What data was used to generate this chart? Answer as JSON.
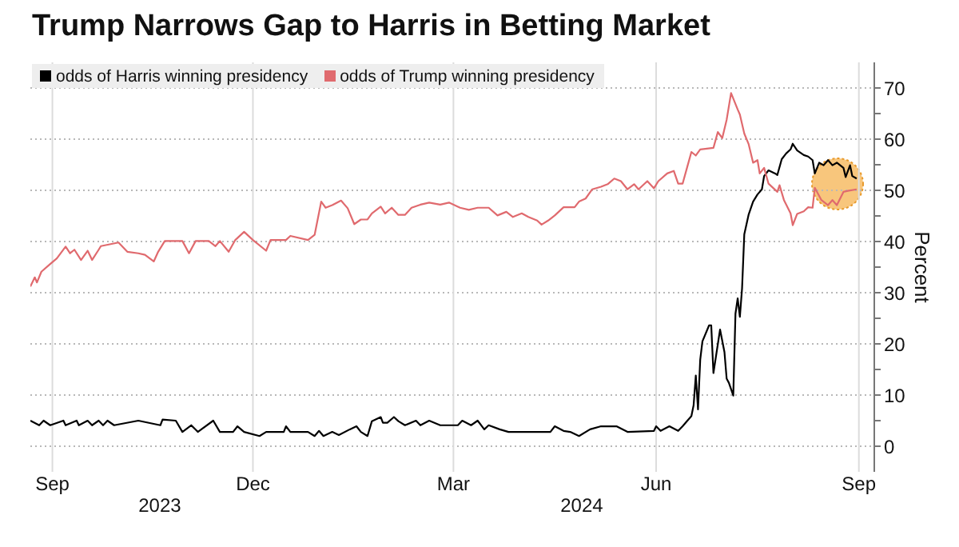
{
  "chart_data": {
    "type": "line",
    "title": "Trump Narrows Gap to Harris in Betting Market",
    "ylabel": "Percent",
    "xlim": [
      "2023-08-22",
      "2024-09-08"
    ],
    "xticks": [
      {
        "value": "2023-09-01",
        "label": "Sep"
      },
      {
        "value": "2023-12-01",
        "label": "Dec"
      },
      {
        "value": "2024-03-01",
        "label": "Mar"
      },
      {
        "value": "2024-06-01",
        "label": "Jun"
      },
      {
        "value": "2024-09-01",
        "label": "Sep"
      }
    ],
    "ylim": [
      -5,
      75
    ],
    "yticks": [
      0,
      {
        "value": 5,
        "label": null
      },
      10,
      {
        "value": 15,
        "label": null
      },
      20,
      {
        "value": 25,
        "label": null
      },
      30,
      {
        "value": 35,
        "label": null
      },
      40,
      {
        "value": 45,
        "label": null
      },
      50,
      {
        "value": 55,
        "label": null
      },
      60,
      {
        "value": 65,
        "label": null
      },
      70
    ],
    "grid": true,
    "legend": "top left",
    "annotations": [
      "2023",
      "2024"
    ],
    "series": [
      {
        "name": "odds of Harris winning presidency",
        "color": "#000000",
        "x": [
          "2023-08-22",
          "2023-08-26",
          "2023-08-28",
          "2023-08-31",
          "2023-09-06",
          "2023-09-07",
          "2023-09-12",
          "2023-09-13",
          "2023-09-17",
          "2023-09-19",
          "2023-09-22",
          "2023-09-24",
          "2023-09-26",
          "2023-09-29",
          "2023-10-10",
          "2023-10-20",
          "2023-10-21",
          "2023-10-27",
          "2023-10-30",
          "2023-11-03",
          "2023-11-06",
          "2023-11-13",
          "2023-11-16",
          "2023-11-22",
          "2023-11-24",
          "2023-11-27",
          "2023-12-04",
          "2023-12-07",
          "2023-12-15",
          "2023-12-16",
          "2023-12-18",
          "2023-12-26",
          "2023-12-29",
          "2023-12-31",
          "2024-01-02",
          "2024-01-06",
          "2024-01-09",
          "2024-01-14",
          "2024-01-17",
          "2024-01-19",
          "2024-01-22",
          "2024-01-24",
          "2024-01-28",
          "2024-01-29",
          "2024-01-31",
          "2024-02-03",
          "2024-02-05",
          "2024-02-08",
          "2024-02-13",
          "2024-02-15",
          "2024-02-19",
          "2024-02-24",
          "2024-03-03",
          "2024-03-05",
          "2024-03-09",
          "2024-03-12",
          "2024-03-15",
          "2024-03-17",
          "2024-03-22",
          "2024-03-26",
          "2024-04-14",
          "2024-04-16",
          "2024-04-20",
          "2024-04-23",
          "2024-04-27",
          "2024-05-02",
          "2024-05-07",
          "2024-05-14",
          "2024-05-19",
          "2024-05-31",
          "2024-06-01",
          "2024-06-03",
          "2024-06-07",
          "2024-06-11",
          "2024-06-13",
          "2024-06-17",
          "2024-06-18",
          "2024-06-19",
          "2024-06-20",
          "2024-06-21",
          "2024-06-22",
          "2024-06-25",
          "2024-06-26",
          "2024-06-27",
          "2024-06-30",
          "2024-07-02",
          "2024-07-03",
          "2024-07-04",
          "2024-07-06",
          "2024-07-07",
          "2024-07-08",
          "2024-07-09",
          "2024-07-10",
          "2024-07-11",
          "2024-07-13",
          "2024-07-15",
          "2024-07-17",
          "2024-07-19",
          "2024-07-20",
          "2024-07-22",
          "2024-07-25",
          "2024-07-26",
          "2024-07-28",
          "2024-07-30",
          "2024-08-01",
          "2024-08-02",
          "2024-08-04",
          "2024-08-07",
          "2024-08-09",
          "2024-08-11",
          "2024-08-12",
          "2024-08-14",
          "2024-08-16",
          "2024-08-18",
          "2024-08-20",
          "2024-08-22",
          "2024-08-25",
          "2024-08-26",
          "2024-08-28",
          "2024-08-29",
          "2024-08-31"
        ],
        "values": [
          5.0,
          4.1,
          5.0,
          4.1,
          5.0,
          4.1,
          5.0,
          4.1,
          5.0,
          4.1,
          5.0,
          4.1,
          5.0,
          4.1,
          5.0,
          4.1,
          5.2,
          5.0,
          2.8,
          4.1,
          2.8,
          5.0,
          2.8,
          2.8,
          3.9,
          2.8,
          2.0,
          2.8,
          2.8,
          3.9,
          2.8,
          2.8,
          2.0,
          3.0,
          2.0,
          2.8,
          2.2,
          3.3,
          3.9,
          2.8,
          2.0,
          4.9,
          5.7,
          4.6,
          4.6,
          5.7,
          4.9,
          4.1,
          5.0,
          4.1,
          5.0,
          4.1,
          4.1,
          5.0,
          4.1,
          5.0,
          3.3,
          4.1,
          3.3,
          2.8,
          2.8,
          3.9,
          3.0,
          2.8,
          2.0,
          3.3,
          3.9,
          3.9,
          2.8,
          3.0,
          3.9,
          3.0,
          3.9,
          3.0,
          3.9,
          5.9,
          8.0,
          13.8,
          7.2,
          16.9,
          20.5,
          23.6,
          23.6,
          14.3,
          22.8,
          18.4,
          13.2,
          12.4,
          9.9,
          25.9,
          28.9,
          25.3,
          30.9,
          41.4,
          45.3,
          47.8,
          49.2,
          50.2,
          52.8,
          53.9,
          53.3,
          53.0,
          56.1,
          57.2,
          58.0,
          59.1,
          57.8,
          56.9,
          56.6,
          55.9,
          53.3,
          55.4,
          54.9,
          55.9,
          54.9,
          55.4,
          54.4,
          52.6,
          54.9,
          52.8,
          52.3
        ]
      },
      {
        "name": "odds of Trump winning presidency",
        "color": "#e06a6e",
        "x": [
          "2023-08-22",
          "2023-08-24",
          "2023-08-25",
          "2023-08-27",
          "2023-08-31",
          "2023-09-03",
          "2023-09-07",
          "2023-09-09",
          "2023-09-11",
          "2023-09-14",
          "2023-09-17",
          "2023-09-19",
          "2023-09-22",
          "2023-09-23",
          "2023-10-01",
          "2023-10-05",
          "2023-10-10",
          "2023-10-13",
          "2023-10-17",
          "2023-10-19",
          "2023-10-22",
          "2023-10-30",
          "2023-11-02",
          "2023-11-05",
          "2023-11-11",
          "2023-11-14",
          "2023-11-16",
          "2023-11-20",
          "2023-11-23",
          "2023-11-27",
          "2023-12-01",
          "2023-12-07",
          "2023-12-09",
          "2023-12-16",
          "2023-12-18",
          "2023-12-26",
          "2023-12-29",
          "2024-01-01",
          "2024-01-03",
          "2024-01-06",
          "2024-01-10",
          "2024-01-13",
          "2024-01-16",
          "2024-01-19",
          "2024-01-22",
          "2024-01-24",
          "2024-01-28",
          "2024-01-30",
          "2024-02-02",
          "2024-02-05",
          "2024-02-08",
          "2024-02-11",
          "2024-02-15",
          "2024-02-19",
          "2024-02-24",
          "2024-02-28",
          "2024-03-04",
          "2024-03-08",
          "2024-03-12",
          "2024-03-17",
          "2024-03-21",
          "2024-03-25",
          "2024-03-28",
          "2024-04-01",
          "2024-04-04",
          "2024-04-08",
          "2024-04-10",
          "2024-04-13",
          "2024-04-16",
          "2024-04-20",
          "2024-04-25",
          "2024-04-27",
          "2024-04-30",
          "2024-05-03",
          "2024-05-07",
          "2024-05-10",
          "2024-05-13",
          "2024-05-16",
          "2024-05-19",
          "2024-05-22",
          "2024-05-24",
          "2024-05-28",
          "2024-05-31",
          "2024-06-02",
          "2024-06-06",
          "2024-06-09",
          "2024-06-11",
          "2024-06-13",
          "2024-06-15",
          "2024-06-17",
          "2024-06-19",
          "2024-06-21",
          "2024-06-27",
          "2024-06-29",
          "2024-07-01",
          "2024-07-03",
          "2024-07-05",
          "2024-07-08",
          "2024-07-09",
          "2024-07-11",
          "2024-07-13",
          "2024-07-15",
          "2024-07-17",
          "2024-07-18",
          "2024-07-20",
          "2024-07-22",
          "2024-07-26",
          "2024-07-27",
          "2024-07-29",
          "2024-08-01",
          "2024-08-02",
          "2024-08-04",
          "2024-08-07",
          "2024-08-09",
          "2024-08-11",
          "2024-08-12",
          "2024-08-15",
          "2024-08-18",
          "2024-08-20",
          "2024-08-22",
          "2024-08-25",
          "2024-08-27",
          "2024-08-31"
        ],
        "values": [
          31.2,
          33.0,
          32.0,
          34.1,
          35.6,
          36.7,
          39.0,
          37.7,
          38.4,
          36.4,
          38.2,
          36.4,
          38.4,
          39.1,
          39.8,
          38.0,
          37.7,
          37.4,
          36.1,
          38.0,
          40.1,
          40.1,
          37.7,
          40.1,
          40.1,
          39.1,
          40.1,
          38.0,
          40.3,
          41.9,
          40.3,
          38.2,
          40.3,
          40.3,
          41.1,
          40.3,
          41.3,
          47.8,
          46.6,
          47.1,
          48.0,
          46.5,
          43.4,
          44.3,
          44.3,
          45.5,
          46.8,
          45.5,
          46.6,
          45.2,
          45.2,
          46.6,
          47.2,
          47.6,
          47.2,
          47.6,
          46.6,
          46.2,
          46.6,
          46.6,
          45.1,
          45.8,
          44.8,
          45.5,
          44.8,
          44.1,
          43.3,
          44.1,
          45.1,
          46.7,
          46.7,
          47.8,
          48.4,
          50.2,
          50.7,
          51.2,
          52.3,
          51.8,
          50.2,
          51.2,
          50.2,
          51.8,
          50.4,
          51.8,
          53.3,
          53.8,
          51.3,
          51.3,
          54.4,
          57.5,
          56.8,
          58.0,
          58.3,
          61.4,
          60.2,
          63.8,
          69.0,
          65.8,
          64.8,
          61.1,
          59.0,
          55.4,
          55.9,
          53.3,
          54.4,
          51.3,
          49.7,
          51.0,
          48.1,
          45.5,
          43.2,
          45.4,
          45.9,
          46.7,
          46.6,
          50.5,
          48.1,
          47.1,
          48.1,
          47.1,
          49.7,
          49.9,
          50.2
        ]
      }
    ]
  }
}
